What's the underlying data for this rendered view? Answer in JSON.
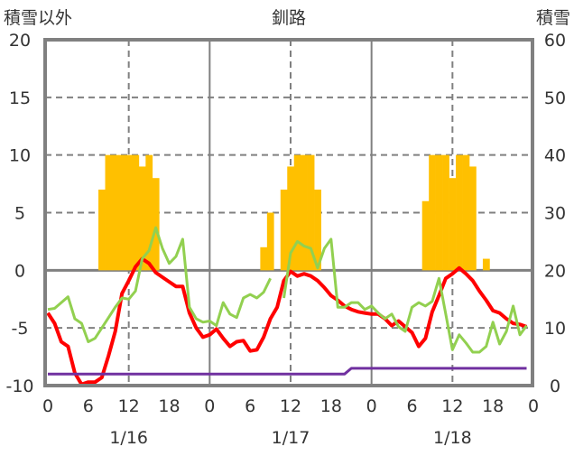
{
  "chart_data": {
    "type": "line",
    "title": "釧路",
    "ylabel_left": "積雪以外",
    "ylabel_right": "積雪",
    "ylim_left": [
      -10,
      20
    ],
    "yticks_left": [
      "20",
      "15",
      "10",
      "5",
      "0",
      "-5",
      "-10"
    ],
    "ylim_right": [
      0,
      60
    ],
    "yticks_right": [
      "60",
      "50",
      "40",
      "30",
      "20",
      "10",
      "0"
    ],
    "days": [
      "1/16",
      "1/17",
      "1/18"
    ],
    "hour_ticks": [
      "0",
      "6",
      "12",
      "18"
    ],
    "final_tick": "0",
    "grid": true,
    "colors": {
      "temperature": "#ff0000",
      "other": "#92d050",
      "snowfall": "#ffc000",
      "snow_depth": "#7030a0",
      "axis": "#808080"
    },
    "snowfall_bars": [
      {
        "day": 0,
        "hours": [
          8,
          9,
          10,
          11,
          12,
          13,
          14,
          15,
          16
        ],
        "values": [
          7,
          10,
          10,
          10,
          10,
          10,
          9,
          10,
          8
        ]
      },
      {
        "day": 1,
        "hours": [
          8,
          9,
          11,
          12,
          13,
          14,
          15,
          16
        ],
        "values": [
          2,
          5,
          7,
          9,
          10,
          10,
          10,
          7
        ]
      },
      {
        "day": 2,
        "hours": [
          8,
          9,
          10,
          11,
          12,
          13,
          14,
          15,
          17
        ],
        "values": [
          6,
          10,
          10,
          10,
          8,
          10,
          10,
          9,
          1
        ]
      }
    ],
    "series": [
      {
        "name": "temperature",
        "axis": "left",
        "values": [
          -3.7,
          -4.6,
          -6.2,
          -6.6,
          -8.9,
          -9.9,
          -9.7,
          -9.7,
          -9.3,
          -7.4,
          -5.3,
          -2.0,
          -0.9,
          0.3,
          1.0,
          0.6,
          -0.2,
          -0.6,
          -1.0,
          -1.4,
          -1.4,
          -3.7,
          -5.0,
          -5.8,
          -5.6,
          -5.1,
          -5.9,
          -6.6,
          -6.2,
          -6.1,
          -7.0,
          -6.9,
          -5.8,
          -4.2,
          -3.2,
          -0.9,
          -0.1,
          -0.5,
          -0.3,
          -0.5,
          -0.9,
          -1.5,
          -2.2,
          -2.6,
          -3.1,
          -3.4,
          -3.6,
          -3.7,
          -3.8,
          -3.8,
          -4.2,
          -4.8,
          -4.4,
          -4.9,
          -5.4,
          -6.6,
          -5.9,
          -3.6,
          -2.2,
          -0.7,
          -0.3,
          0.2,
          -0.3,
          -0.9,
          -1.8,
          -2.6,
          -3.5,
          -3.7,
          -4.2,
          -4.6,
          -4.7,
          -4.9
        ]
      },
      {
        "name": "other",
        "axis": "left",
        "values": [
          -3.4,
          -3.3,
          -2.8,
          -2.3,
          -4.2,
          -4.6,
          -6.2,
          -5.9,
          -5.0,
          -4.1,
          -3.2,
          -2.4,
          -2.5,
          -1.8,
          1.0,
          1.7,
          3.7,
          1.9,
          0.6,
          1.2,
          2.7,
          -3.2,
          -4.2,
          -4.5,
          -4.4,
          -4.8,
          -2.8,
          -3.8,
          -4.1,
          -2.4,
          -2.1,
          -2.4,
          -1.9,
          -0.7,
          null,
          -2.4,
          1.5,
          2.5,
          2.1,
          1.9,
          0.2,
          1.9,
          2.7,
          -3.2,
          -3.2,
          -2.8,
          -2.8,
          -3.4,
          -3.1,
          -3.7,
          -4.2,
          -3.8,
          -4.9,
          -5.3,
          -3.2,
          -2.8,
          -3.1,
          -2.7,
          -0.7,
          -3.8,
          -6.9,
          -5.6,
          -6.3,
          -7.1,
          -7.1,
          -6.6,
          -4.5,
          -6.4,
          -5.3,
          -3.1,
          -5.6,
          -4.8
        ]
      },
      {
        "name": "snow_depth",
        "axis": "right",
        "values": [
          2,
          2,
          2,
          2,
          2,
          2,
          2,
          2,
          2,
          2,
          2,
          2,
          2,
          2,
          2,
          2,
          2,
          2,
          2,
          2,
          2,
          2,
          2,
          2,
          2,
          2,
          2,
          2,
          2,
          2,
          2,
          2,
          2,
          2,
          2,
          2,
          2,
          2,
          2,
          2,
          2,
          2,
          2,
          2,
          2,
          3,
          3,
          3,
          3,
          3,
          3,
          3,
          3,
          3,
          3,
          3,
          3,
          3,
          3,
          3,
          3,
          3,
          3,
          3,
          3,
          3,
          3,
          3,
          3,
          3,
          3,
          3
        ]
      }
    ]
  }
}
